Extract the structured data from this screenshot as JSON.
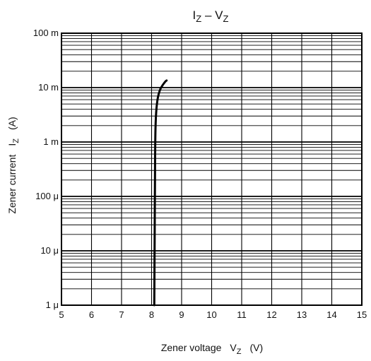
{
  "chart_data": {
    "type": "line",
    "title": {
      "main": "I",
      "main_sub": "Z",
      "dash": " – ",
      "second": "V",
      "second_sub": "Z"
    },
    "xlabel": {
      "text": "Zener voltage",
      "symbol": "V",
      "symbol_sub": "Z",
      "unit": "(V)"
    },
    "ylabel": {
      "text": "Zener current",
      "symbol": "I",
      "symbol_sub": "Z",
      "unit": "(A)"
    },
    "x_scale": "linear",
    "y_scale": "log",
    "xlim": [
      5,
      15
    ],
    "ylim": [
      1e-06,
      0.1
    ],
    "grid": true,
    "x_ticks": [
      {
        "value": 5,
        "label": "5"
      },
      {
        "value": 6,
        "label": "6"
      },
      {
        "value": 7,
        "label": "7"
      },
      {
        "value": 8,
        "label": "8"
      },
      {
        "value": 9,
        "label": "9"
      },
      {
        "value": 10,
        "label": "10"
      },
      {
        "value": 11,
        "label": "11"
      },
      {
        "value": 12,
        "label": "12"
      },
      {
        "value": 13,
        "label": "13"
      },
      {
        "value": 14,
        "label": "14"
      },
      {
        "value": 15,
        "label": "15"
      }
    ],
    "y_ticks": [
      {
        "value": 1e-06,
        "label": "1 μ"
      },
      {
        "value": 1e-05,
        "label": "10 μ"
      },
      {
        "value": 0.0001,
        "label": "100 μ"
      },
      {
        "value": 0.001,
        "label": "1 m"
      },
      {
        "value": 0.01,
        "label": "10 m"
      },
      {
        "value": 0.1,
        "label": "100 m"
      }
    ],
    "series": [
      {
        "color": "#000000",
        "points": [
          {
            "x": 8.09,
            "y": 1e-06
          },
          {
            "x": 8.1,
            "y": 1e-05
          },
          {
            "x": 8.11,
            "y": 0.0001
          },
          {
            "x": 8.12,
            "y": 0.001
          },
          {
            "x": 8.14,
            "y": 0.003
          },
          {
            "x": 8.19,
            "y": 0.006
          },
          {
            "x": 8.27,
            "y": 0.009
          },
          {
            "x": 8.36,
            "y": 0.011
          },
          {
            "x": 8.46,
            "y": 0.013
          },
          {
            "x": 8.5,
            "y": 0.0135
          }
        ]
      }
    ]
  }
}
